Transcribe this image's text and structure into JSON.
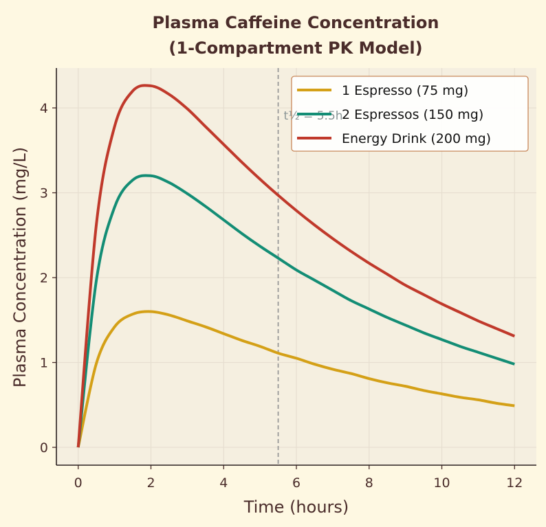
{
  "chart_data": {
    "type": "line",
    "title_line1": "Plasma Caffeine Concentration",
    "title_line2": "(1-Compartment PK Model)",
    "xlabel": "Time (hours)",
    "ylabel": "Plasma Concentration (mg/L)",
    "xlim": [
      -0.6,
      12.6
    ],
    "ylim": [
      -0.21,
      4.47
    ],
    "xticks": [
      0,
      2,
      4,
      6,
      8,
      10,
      12
    ],
    "yticks": [
      0,
      1,
      2,
      3,
      4
    ],
    "grid": true,
    "legend_placement": "top-right",
    "annotation": {
      "text": "t½ = 5.5h",
      "x": 5.5,
      "line_color": "#999999"
    },
    "x": [
      0,
      0.5,
      1,
      1.5,
      2,
      2.5,
      3,
      3.5,
      4,
      4.5,
      5,
      5.5,
      6,
      6.5,
      7,
      7.5,
      8,
      8.5,
      9,
      9.5,
      10,
      10.5,
      11,
      11.5,
      12
    ],
    "series": [
      {
        "name": "1 Espresso (75 mg)",
        "color": "#d4a017",
        "values": [
          0,
          0.99,
          1.42,
          1.57,
          1.6,
          1.56,
          1.49,
          1.42,
          1.34,
          1.26,
          1.19,
          1.11,
          1.05,
          0.98,
          0.92,
          0.87,
          0.81,
          0.76,
          0.72,
          0.67,
          0.63,
          0.59,
          0.56,
          0.52,
          0.49
        ]
      },
      {
        "name": "2 Espressos (150 mg)",
        "color": "#138d75",
        "values": [
          0,
          1.97,
          2.83,
          3.15,
          3.2,
          3.12,
          2.99,
          2.84,
          2.68,
          2.52,
          2.37,
          2.23,
          2.09,
          1.97,
          1.85,
          1.73,
          1.63,
          1.53,
          1.44,
          1.35,
          1.27,
          1.19,
          1.12,
          1.05,
          0.98
        ]
      },
      {
        "name": "Energy Drink (200 mg)",
        "color": "#c0392b",
        "values": [
          0,
          2.63,
          3.78,
          4.2,
          4.26,
          4.16,
          3.99,
          3.78,
          3.57,
          3.36,
          3.16,
          2.97,
          2.79,
          2.62,
          2.46,
          2.31,
          2.17,
          2.04,
          1.91,
          1.8,
          1.69,
          1.59,
          1.49,
          1.4,
          1.31
        ]
      }
    ]
  }
}
